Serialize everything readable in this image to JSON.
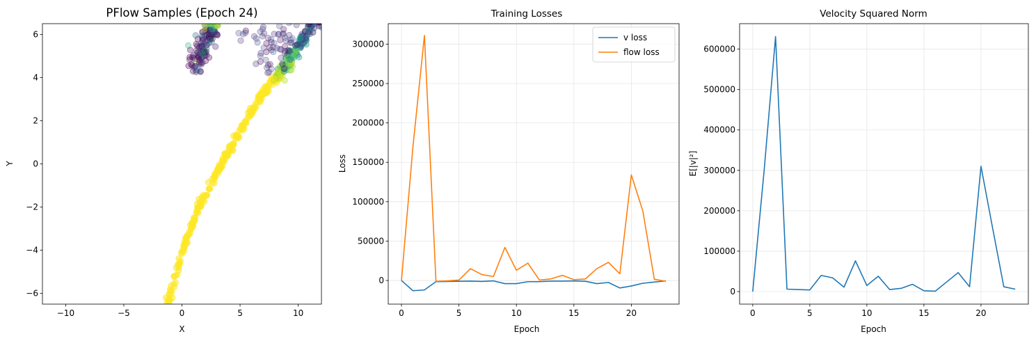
{
  "colors": {
    "blue": "#1f77b4",
    "orange": "#ff7f0e",
    "grid": "#e6e6e6",
    "viridis": [
      "#440154",
      "#482878",
      "#3e4989",
      "#31688e",
      "#26828e",
      "#1f9e89",
      "#35b779",
      "#6ece58",
      "#b5de2b",
      "#fde725"
    ]
  },
  "chart_data": [
    {
      "type": "scatter",
      "title": "PFlow Samples (Epoch 24)",
      "xlabel": "X",
      "ylabel": "Y",
      "xlim": [
        -12,
        12
      ],
      "ylim": [
        -6.5,
        6.5
      ],
      "xticks": [
        -10,
        -5,
        0,
        5,
        10
      ],
      "xtick_labels": [
        "−10",
        "−5",
        "0",
        "5",
        "10"
      ],
      "yticks": [
        -6,
        -4,
        -2,
        0,
        2,
        4,
        6
      ],
      "ytick_labels": [
        "−6",
        "−4",
        "−2",
        "0",
        "2",
        "4",
        "6"
      ],
      "grid": false,
      "trunk": [
        [
          -1.3,
          -6.6
        ],
        [
          -0.5,
          -5.0
        ],
        [
          0.3,
          -3.6
        ],
        [
          1.5,
          -2.0
        ],
        [
          2.5,
          -1.0
        ],
        [
          3.6,
          0.2
        ],
        [
          4.5,
          1.0
        ],
        [
          5.5,
          2.0
        ],
        [
          6.6,
          3.0
        ],
        [
          7.6,
          3.7
        ],
        [
          8.4,
          4.2
        ]
      ],
      "branch": [
        [
          8.0,
          3.9
        ],
        [
          8.8,
          4.4
        ],
        [
          9.5,
          5.0
        ],
        [
          10.3,
          5.7
        ],
        [
          11.2,
          6.4
        ],
        [
          12.0,
          6.9
        ]
      ],
      "left_cluster": [
        [
          1.0,
          4.1
        ],
        [
          2.7,
          6.6
        ]
      ],
      "sparse_purple": [
        [
          5.6,
          6.3
        ],
        [
          6.6,
          6.0
        ],
        [
          7.0,
          5.3
        ],
        [
          7.4,
          4.6
        ],
        [
          7.8,
          5.8
        ],
        [
          8.3,
          4.9
        ],
        [
          8.6,
          6.1
        ],
        [
          9.0,
          5.5
        ],
        [
          9.4,
          6.2
        ]
      ]
    },
    {
      "type": "line",
      "title": "Training Losses",
      "xlabel": "Epoch",
      "ylabel": "Loss",
      "xlim": [
        -1.15,
        24.15
      ],
      "ylim": [
        -30000,
        326000
      ],
      "xticks": [
        0,
        5,
        10,
        15,
        20
      ],
      "xtick_labels": [
        "0",
        "5",
        "10",
        "15",
        "20"
      ],
      "yticks": [
        0,
        50000,
        100000,
        150000,
        200000,
        250000,
        300000
      ],
      "ytick_labels": [
        "0",
        "50000",
        "100000",
        "150000",
        "200000",
        "250000",
        "300000"
      ],
      "grid": true,
      "legend": "top-right",
      "x": [
        0,
        1,
        2,
        3,
        4,
        5,
        6,
        7,
        8,
        9,
        10,
        11,
        12,
        13,
        14,
        15,
        16,
        17,
        18,
        19,
        20,
        21,
        22,
        23
      ],
      "series": [
        {
          "name": "v loss",
          "values": [
            0,
            -13000,
            -12000,
            -1500,
            -1200,
            -1000,
            -800,
            -1200,
            -500,
            -4000,
            -4000,
            -1500,
            -1500,
            -800,
            -800,
            -600,
            -1000,
            -4000,
            -2500,
            -9500,
            -7000,
            -3500,
            -2000,
            -500
          ]
        },
        {
          "name": "flow loss",
          "values": [
            0,
            170000,
            311000,
            -1000,
            -500,
            500,
            15000,
            7500,
            5000,
            42000,
            13000,
            22000,
            500,
            2000,
            6500,
            1000,
            2000,
            15000,
            23000,
            8500,
            134000,
            88000,
            1500,
            -1000
          ]
        }
      ]
    },
    {
      "type": "line",
      "title": "Velocity Squared Norm",
      "xlabel": "Epoch",
      "ylabel": "E[|v|²]",
      "xlim": [
        -1.15,
        24.15
      ],
      "ylim": [
        -31000,
        663000
      ],
      "xticks": [
        0,
        5,
        10,
        15,
        20
      ],
      "xtick_labels": [
        "0",
        "5",
        "10",
        "15",
        "20"
      ],
      "yticks": [
        0,
        100000,
        200000,
        300000,
        400000,
        500000,
        600000
      ],
      "ytick_labels": [
        "0",
        "100000",
        "200000",
        "300000",
        "400000",
        "500000",
        "600000"
      ],
      "grid": true,
      "x": [
        0,
        1,
        2,
        3,
        4,
        5,
        6,
        7,
        8,
        9,
        10,
        11,
        12,
        13,
        14,
        15,
        16,
        17,
        18,
        19,
        20,
        21,
        22,
        23
      ],
      "series": [
        {
          "values": [
            0,
            300000,
            631000,
            6000,
            5000,
            4000,
            40000,
            34000,
            11000,
            76000,
            15000,
            38000,
            5000,
            8000,
            18000,
            2000,
            1000,
            24000,
            47000,
            12000,
            310000,
            160000,
            12000,
            6000
          ]
        }
      ]
    }
  ]
}
